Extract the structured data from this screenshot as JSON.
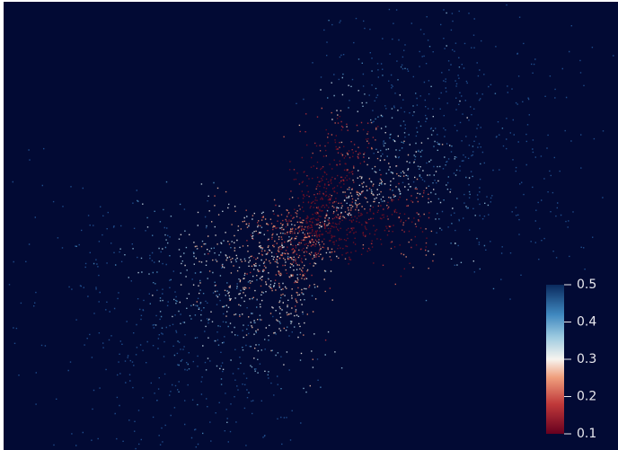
{
  "colorbar": {
    "lim": [
      0.1,
      0.5
    ],
    "ticks": [
      0.1,
      0.2,
      0.3,
      0.4,
      0.5
    ]
  }
}
